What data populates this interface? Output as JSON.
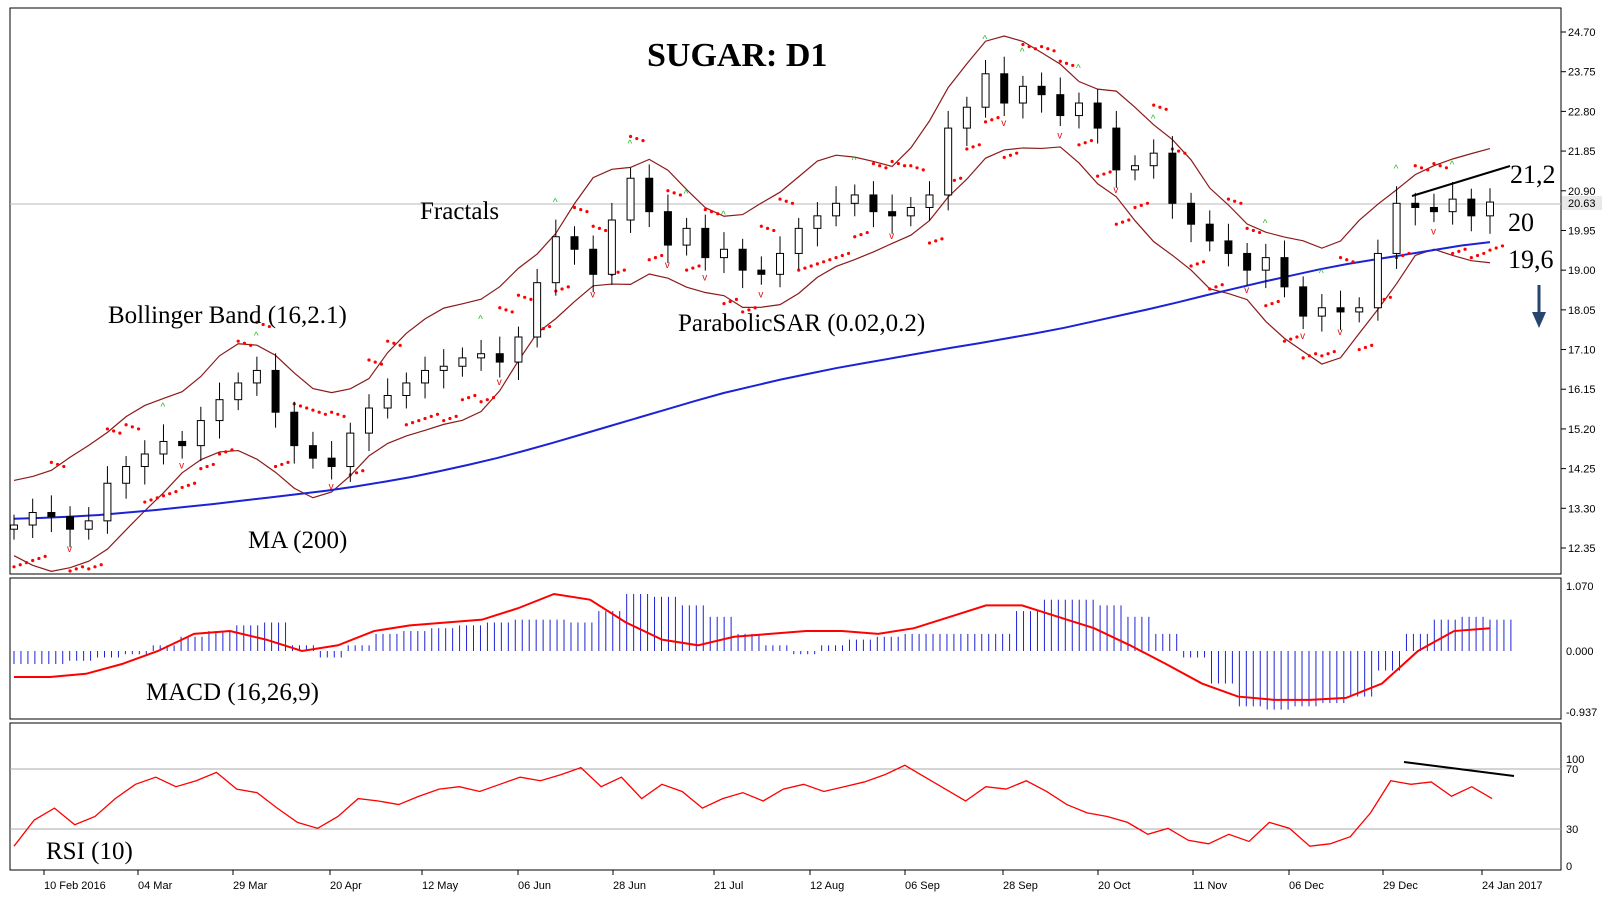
{
  "chart_data": [
    {
      "type": "candlestick",
      "panel": "price",
      "title": "SUGAR: D1",
      "price_axis_ticks": [
        "24.70",
        "23.75",
        "22.80",
        "21.85",
        "20.90",
        "19.95",
        "19.00",
        "18.05",
        "17.10",
        "16.15",
        "15.20",
        "14.25",
        "13.30",
        "12.35"
      ],
      "current_price_label": "20.63",
      "x_tick_labels": [
        "10 Feb 2016",
        "04 Mar",
        "29 Mar",
        "20 Apr",
        "12 May",
        "06 Jun",
        "28 Jun",
        "21 Jul",
        "12 Aug",
        "06 Sep",
        "28 Sep",
        "20 Oct",
        "11 Nov",
        "06 Dec",
        "29 Dec",
        "24 Jan 2017"
      ],
      "indicator_labels": {
        "bollinger": "Bollinger Band (16,2.1)",
        "fractals": "Fractals",
        "sar": "ParabolicSAR (0.02,0.2)",
        "ma": "MA (200)"
      },
      "level_labels": [
        "21,2",
        "20",
        "19,6"
      ],
      "close_series": [
        12.9,
        13.2,
        13.1,
        12.8,
        13.0,
        13.9,
        14.3,
        14.6,
        14.9,
        14.8,
        15.4,
        15.9,
        16.3,
        16.6,
        15.6,
        14.8,
        14.5,
        14.3,
        15.1,
        15.7,
        16.0,
        16.3,
        16.6,
        16.7,
        16.9,
        17.0,
        16.8,
        17.4,
        18.7,
        19.8,
        19.5,
        18.9,
        20.2,
        21.2,
        20.4,
        19.6,
        20.0,
        19.3,
        19.5,
        19.0,
        18.9,
        19.4,
        20.0,
        20.3,
        20.6,
        20.8,
        20.4,
        20.3,
        20.5,
        20.8,
        22.4,
        22.9,
        23.7,
        23.0,
        23.4,
        23.2,
        22.7,
        23.0,
        22.4,
        21.4,
        21.5,
        21.8,
        20.6,
        20.1,
        19.7,
        19.4,
        19.0,
        19.3,
        18.6,
        17.9,
        18.1,
        18.0,
        18.1,
        19.4,
        20.6,
        20.5,
        20.4,
        20.7,
        20.3,
        20.63
      ],
      "ma200_series": [
        13.05,
        13.07,
        13.1,
        13.14,
        13.2,
        13.26,
        13.33,
        13.4,
        13.48,
        13.56,
        13.64,
        13.72,
        13.82,
        13.93,
        14.05,
        14.19,
        14.34,
        14.5,
        14.68,
        14.87,
        15.07,
        15.27,
        15.47,
        15.67,
        15.87,
        16.06,
        16.22,
        16.38,
        16.52,
        16.66,
        16.78,
        16.9,
        17.02,
        17.14,
        17.25,
        17.37,
        17.49,
        17.62,
        17.77,
        17.92,
        18.07,
        18.23,
        18.4,
        18.56,
        18.72,
        18.87,
        19.02,
        19.15,
        19.26,
        19.37,
        19.48,
        19.59,
        19.67
      ],
      "fractal_up_count": 42,
      "fractal_down_count": 38
    },
    {
      "type": "bar",
      "panel": "macd",
      "label": "MACD (16,26,9)",
      "axis_ticks": [
        "1.070",
        "0.000",
        "-0.937"
      ],
      "ylim": [
        -0.937,
        1.07
      ],
      "histogram": [
        -0.2,
        -0.2,
        -0.15,
        -0.1,
        -0.05,
        0.1,
        0.25,
        0.35,
        0.45,
        0.5,
        0.1,
        -0.1,
        0.1,
        0.3,
        0.35,
        0.4,
        0.45,
        0.5,
        0.55,
        0.55,
        0.5,
        0.7,
        1.0,
        0.95,
        0.8,
        0.6,
        0.3,
        0.1,
        -0.05,
        0.1,
        0.2,
        0.25,
        0.3,
        0.3,
        0.3,
        0.3,
        0.7,
        0.9,
        0.9,
        0.8,
        0.6,
        0.3,
        -0.1,
        -0.5,
        -0.85,
        -0.9,
        -0.85,
        -0.8,
        -0.7,
        -0.3,
        0.3,
        0.55,
        0.6,
        0.55
      ],
      "signal": [
        -0.4,
        -0.4,
        -0.35,
        -0.2,
        0.0,
        0.3,
        0.35,
        0.2,
        0.0,
        0.1,
        0.35,
        0.45,
        0.5,
        0.55,
        0.75,
        1.0,
        0.9,
        0.5,
        0.2,
        0.1,
        0.25,
        0.3,
        0.35,
        0.35,
        0.3,
        0.4,
        0.6,
        0.8,
        0.8,
        0.6,
        0.4,
        0.1,
        -0.2,
        -0.5,
        -0.7,
        -0.75,
        -0.75,
        -0.72,
        -0.5,
        0.0,
        0.35,
        0.4
      ]
    },
    {
      "type": "line",
      "panel": "rsi",
      "label": "RSI (10)",
      "axis_ticks": [
        "100",
        "70",
        "30",
        "0"
      ],
      "ylim": [
        0,
        100
      ],
      "values": [
        20,
        42,
        52,
        38,
        45,
        60,
        72,
        78,
        70,
        75,
        82,
        68,
        65,
        52,
        40,
        35,
        45,
        60,
        58,
        55,
        62,
        68,
        70,
        66,
        72,
        78,
        75,
        80,
        86,
        70,
        78,
        60,
        72,
        66,
        52,
        60,
        65,
        58,
        68,
        72,
        66,
        70,
        74,
        80,
        88,
        78,
        68,
        58,
        70,
        68,
        75,
        66,
        55,
        48,
        45,
        40,
        30,
        35,
        25,
        22,
        30,
        24,
        40,
        35,
        20,
        22,
        28,
        48,
        75,
        72,
        74,
        62,
        70,
        60
      ]
    }
  ],
  "colors": {
    "band": "#8b1a1a",
    "ma": "#1c22d6",
    "sar": "#ff0000",
    "fractal_up": "#22bb22",
    "fractal_down": "#dd1111",
    "macd_hist": "#1c22d6",
    "macd_signal": "#ff0000",
    "rsi": "#ff0000",
    "trend": "#000000",
    "arrow": "#27466e"
  }
}
